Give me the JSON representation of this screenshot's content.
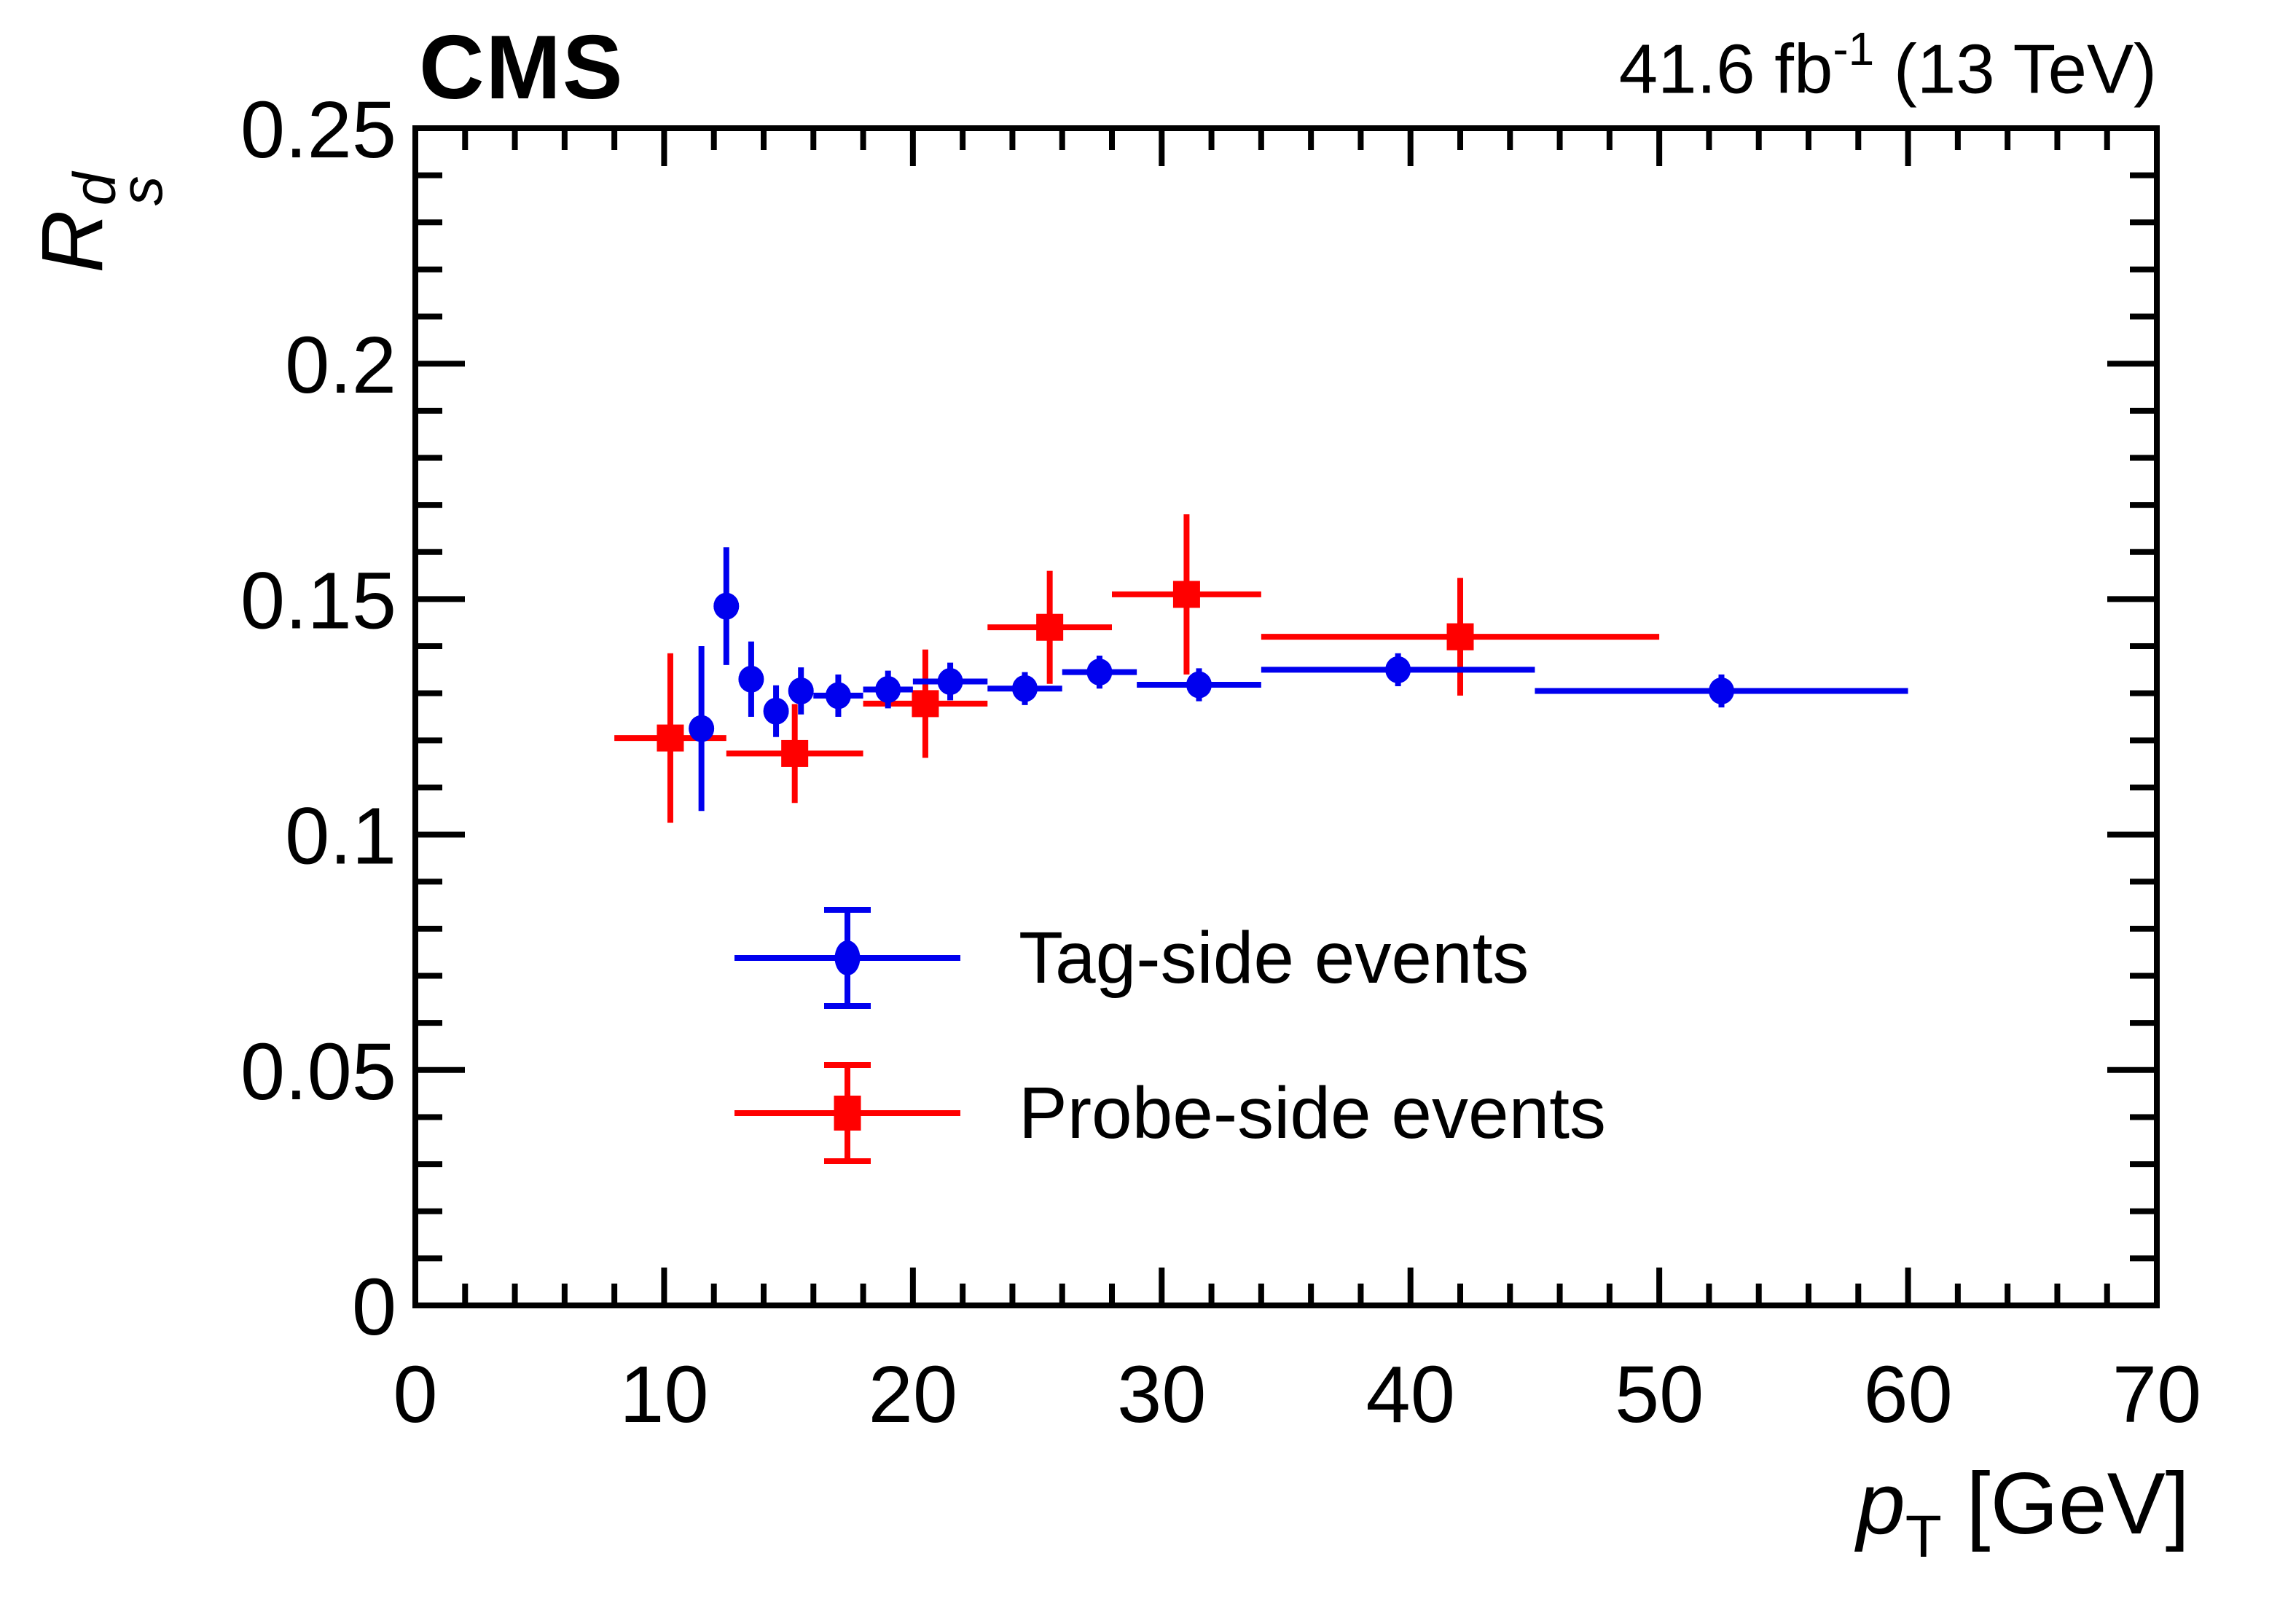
{
  "header": {
    "experiment": "CMS",
    "lumi_prefix": "41.6 fb",
    "lumi_sup": "-1",
    "lumi_suffix": " (13 TeV)"
  },
  "axes": {
    "x": {
      "title_base": "p",
      "title_sub": "T",
      "title_suffix": " [GeV]",
      "min": 0,
      "max": 70,
      "major_step": 10,
      "minor_step": 2,
      "tick_labels": [
        "0",
        "10",
        "20",
        "30",
        "40",
        "50",
        "60",
        "70"
      ]
    },
    "y": {
      "title_base": "R",
      "title_sub": "s",
      "title_sup": "d",
      "min": 0,
      "max": 0.25,
      "major_step": 0.05,
      "minor_step": 0.01,
      "tick_labels": [
        "0",
        "0.05",
        "0.1",
        "0.15",
        "0.2",
        "0.25"
      ]
    }
  },
  "legend": [
    {
      "label": "Tag-side events",
      "marker": "circle",
      "color": "#0000ee"
    },
    {
      "label": "Probe-side events",
      "marker": "square",
      "color": "#ff0000"
    }
  ],
  "colors": {
    "frame": "#000000",
    "background": "#ffffff",
    "tag_side": "#0000ee",
    "probe_side": "#ff0000"
  },
  "chart_data": {
    "type": "scatter",
    "title": "",
    "xlabel": "p_T [GeV]",
    "ylabel": "R_s^d",
    "xlim": [
      0,
      70
    ],
    "ylim": [
      0,
      0.25
    ],
    "grid": false,
    "legend_position": "center-bottom",
    "series": [
      {
        "name": "Tag-side events",
        "marker": "circle",
        "color": "#0000ee",
        "points": [
          {
            "x": 11.5,
            "x_lo": 11,
            "x_hi": 12,
            "y": 0.1225,
            "y_err": 0.0175
          },
          {
            "x": 12.5,
            "x_lo": 12,
            "x_hi": 13,
            "y": 0.1485,
            "y_err": 0.0125
          },
          {
            "x": 13.5,
            "x_lo": 13,
            "x_hi": 14,
            "y": 0.133,
            "y_err": 0.008
          },
          {
            "x": 14.5,
            "x_lo": 14,
            "x_hi": 15,
            "y": 0.1262,
            "y_err": 0.0055
          },
          {
            "x": 15.5,
            "x_lo": 15,
            "x_hi": 16,
            "y": 0.1305,
            "y_err": 0.005
          },
          {
            "x": 17.0,
            "x_lo": 16,
            "x_hi": 18,
            "y": 0.1295,
            "y_err": 0.0045
          },
          {
            "x": 19.0,
            "x_lo": 18,
            "x_hi": 20,
            "y": 0.1308,
            "y_err": 0.004
          },
          {
            "x": 21.5,
            "x_lo": 20,
            "x_hi": 23,
            "y": 0.1325,
            "y_err": 0.004
          },
          {
            "x": 24.5,
            "x_lo": 23,
            "x_hi": 26,
            "y": 0.131,
            "y_err": 0.0035
          },
          {
            "x": 27.5,
            "x_lo": 26,
            "x_hi": 29,
            "y": 0.1345,
            "y_err": 0.0035
          },
          {
            "x": 31.5,
            "x_lo": 29,
            "x_hi": 34,
            "y": 0.1318,
            "y_err": 0.0035
          },
          {
            "x": 39.5,
            "x_lo": 34,
            "x_hi": 45,
            "y": 0.135,
            "y_err": 0.0035
          },
          {
            "x": 52.5,
            "x_lo": 45,
            "x_hi": 60,
            "y": 0.1305,
            "y_err": 0.0035
          }
        ]
      },
      {
        "name": "Probe-side events",
        "marker": "square",
        "color": "#ff0000",
        "points": [
          {
            "x": 10.25,
            "x_lo": 8,
            "x_hi": 12.5,
            "y": 0.1205,
            "y_err": 0.018
          },
          {
            "x": 15.25,
            "x_lo": 12.5,
            "x_hi": 18,
            "y": 0.1172,
            "y_err": 0.0105
          },
          {
            "x": 20.5,
            "x_lo": 18,
            "x_hi": 23,
            "y": 0.1278,
            "y_err": 0.0115
          },
          {
            "x": 25.5,
            "x_lo": 23,
            "x_hi": 28,
            "y": 0.144,
            "y_err": 0.012
          },
          {
            "x": 31.0,
            "x_lo": 28,
            "x_hi": 34,
            "y": 0.151,
            "y_err": 0.017
          },
          {
            "x": 42.0,
            "x_lo": 34,
            "x_hi": 50,
            "y": 0.142,
            "y_err": 0.0125
          }
        ]
      }
    ]
  }
}
